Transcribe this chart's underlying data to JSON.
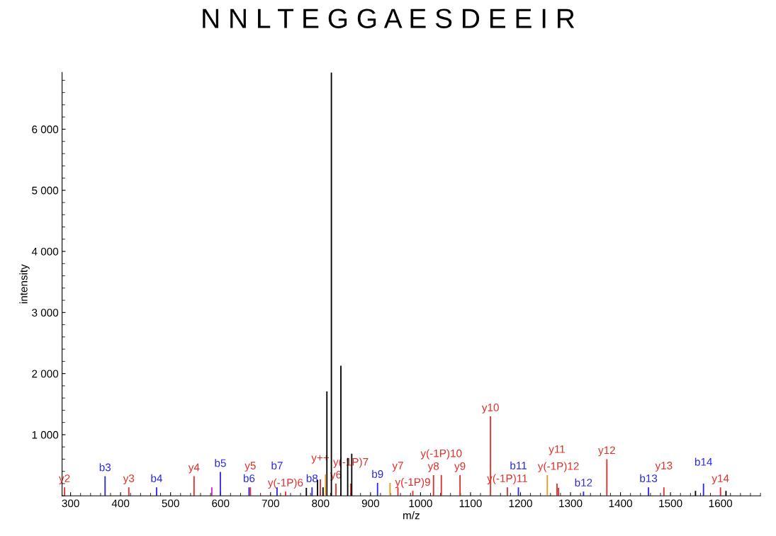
{
  "chart_data": {
    "type": "bar",
    "title": "N N L T E G G A E S D E E I R",
    "xlabel": "m/z",
    "ylabel": "intensity",
    "xlim": [
      283,
      1680
    ],
    "xticks": [
      300,
      400,
      500,
      600,
      700,
      800,
      900,
      1000,
      1100,
      1200,
      1300,
      1400,
      1500,
      1600
    ],
    "ylim": [
      0,
      6930
    ],
    "yticks": [
      {
        "value": 1000,
        "label": "1 000"
      },
      {
        "value": 2000,
        "label": "2 000"
      },
      {
        "value": 3000,
        "label": "3 000"
      },
      {
        "value": 4000,
        "label": "4 000"
      },
      {
        "value": 5000,
        "label": "5 000"
      },
      {
        "value": 6000,
        "label": "6 000"
      }
    ],
    "grid": false,
    "legend": false,
    "series": [
      {
        "color": "#e0302a",
        "x": [
          288,
          416.5,
          547,
          659.7,
          730,
          799.6,
          830.8,
          860.6,
          954.8,
          984.6,
          1026,
          1041.6,
          1079,
          1140,
          1173.7,
          1273,
          1276,
          1372.7,
          1486.8,
          1600
        ],
        "values": [
          140,
          140,
          320,
          140,
          70,
          270,
          200,
          200,
          140,
          80,
          340,
          340,
          340,
          1300,
          140,
          200,
          130,
          600,
          140,
          140
        ],
        "value_labels": [
          "y2",
          "y3",
          "y4",
          "y5",
          "y(-1P)6",
          "y++",
          "y6",
          "y(-1P)7",
          "y7",
          "y(-1P)9",
          "y8",
          "y(-1P)10",
          "y9",
          "y10",
          "y(-1P)11",
          "y11",
          "y(-1P)12",
          "y12",
          "y13",
          "y14"
        ]
      },
      {
        "color": "#2a2ae0",
        "x": [
          369,
          472,
          599.6,
          657,
          713,
          783,
          914,
          1195.8,
          1326,
          1456,
          1566
        ],
        "values": [
          320,
          140,
          390,
          140,
          140,
          140,
          210,
          140,
          70,
          140,
          200
        ],
        "value_labels": [
          "b3",
          "b4",
          "b5",
          "b6",
          "b7",
          "b8",
          "b9",
          "b11",
          "b12",
          "b13",
          "b14"
        ]
      },
      {
        "color": "#000000",
        "x": [
          771.6,
          794,
          805,
          812.7,
          821.7,
          840.7,
          854.3,
          862.4,
          1550,
          1611
        ],
        "values": [
          130,
          260,
          140,
          1710,
          6930,
          2130,
          620,
          690,
          80,
          80
        ]
      },
      {
        "color": "#e39b1e",
        "x": [
          810,
          939,
          1253.6
        ],
        "values": [
          350,
          210,
          340
        ]
      },
      {
        "color": "#d020d0",
        "x": [
          582.5
        ],
        "values": [
          140
        ]
      }
    ]
  }
}
